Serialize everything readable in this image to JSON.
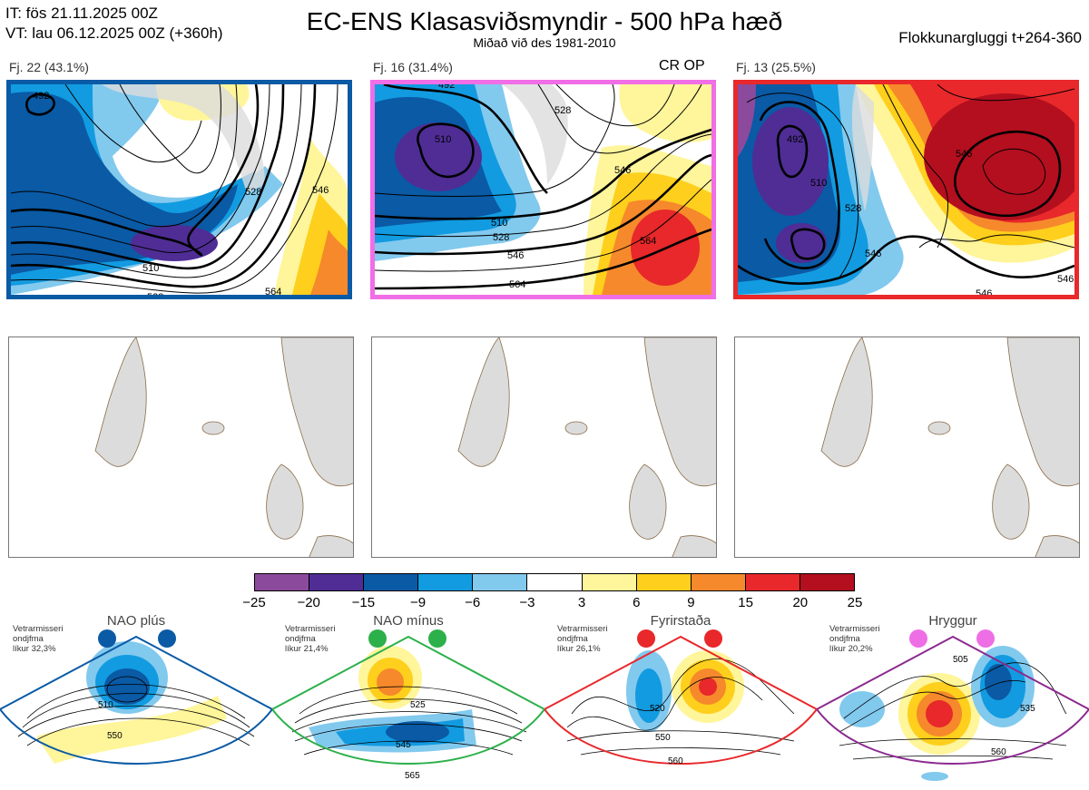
{
  "header": {
    "it_line": "IT: fös 21.11.2025 00Z",
    "vt_line": "VT: lau 06.12.2025 00Z  (+360h)",
    "title": "EC-ENS Klasasviðsmyndir - 500 hPa hæð",
    "subtitle": "Miðað við des 1981-2010",
    "window": "Flokkunargluggi t+264-360"
  },
  "panels": [
    {
      "label": "Fj. 22 (43.1%)",
      "frame_color": "#0a5aa5",
      "contours": [
        "492",
        "510",
        "528",
        "546",
        "528",
        "564"
      ]
    },
    {
      "label": "Fj. 16 (31.4%)",
      "frame_color": "#f06ee6",
      "tag": "CR OP",
      "contours": [
        "492",
        "510",
        "510",
        "528",
        "528",
        "546",
        "546",
        "564",
        "564"
      ]
    },
    {
      "label": "Fj. 13 (25.5%)",
      "frame_color": "#e8282a",
      "contours": [
        "492",
        "510",
        "528",
        "546",
        "546",
        "546",
        "546"
      ]
    }
  ],
  "colorbar": {
    "colors": [
      "#8c4a9c",
      "#4f2d95",
      "#0a5aa5",
      "#129be0",
      "#82c9ee",
      "#ffffff",
      "#fff59a",
      "#fecf1c",
      "#f6892b",
      "#e8282a",
      "#b30f1f"
    ],
    "ticks": [
      "−25",
      "−20",
      "−15",
      "−9",
      "−6",
      "−3",
      "3",
      "6",
      "9",
      "15",
      "20",
      "25"
    ]
  },
  "regimes": [
    {
      "name": "NAO plús",
      "desc": [
        "Vetrarmisseri",
        "ondjfma",
        "líkur 32,3%"
      ],
      "dot_color": "#0a5aa5",
      "frame_color": "#0a5aa5",
      "labels": [
        "510",
        "550"
      ]
    },
    {
      "name": "NAO mínus",
      "desc": [
        "Vetrarmisseri",
        "ondjfma",
        "líkur 21,4%"
      ],
      "dot_color": "#2cb04a",
      "frame_color": "#2cb04a",
      "labels": [
        "525",
        "545",
        "565"
      ]
    },
    {
      "name": "Fyrirstaða",
      "desc": [
        "Vetrarmisseri",
        "ondjfma",
        "líkur 26,1%"
      ],
      "dot_color": "#e8282a",
      "frame_color": "#e8282a",
      "labels": [
        "520",
        "550",
        "560"
      ]
    },
    {
      "name": "Hryggur",
      "desc": [
        "Vetrarmisseri",
        "ondjfma",
        "líkur 20,2%"
      ],
      "dot_color": "#ee6ee6",
      "frame_color": "#8b2a8f",
      "labels": [
        "505",
        "535",
        "560"
      ]
    }
  ]
}
